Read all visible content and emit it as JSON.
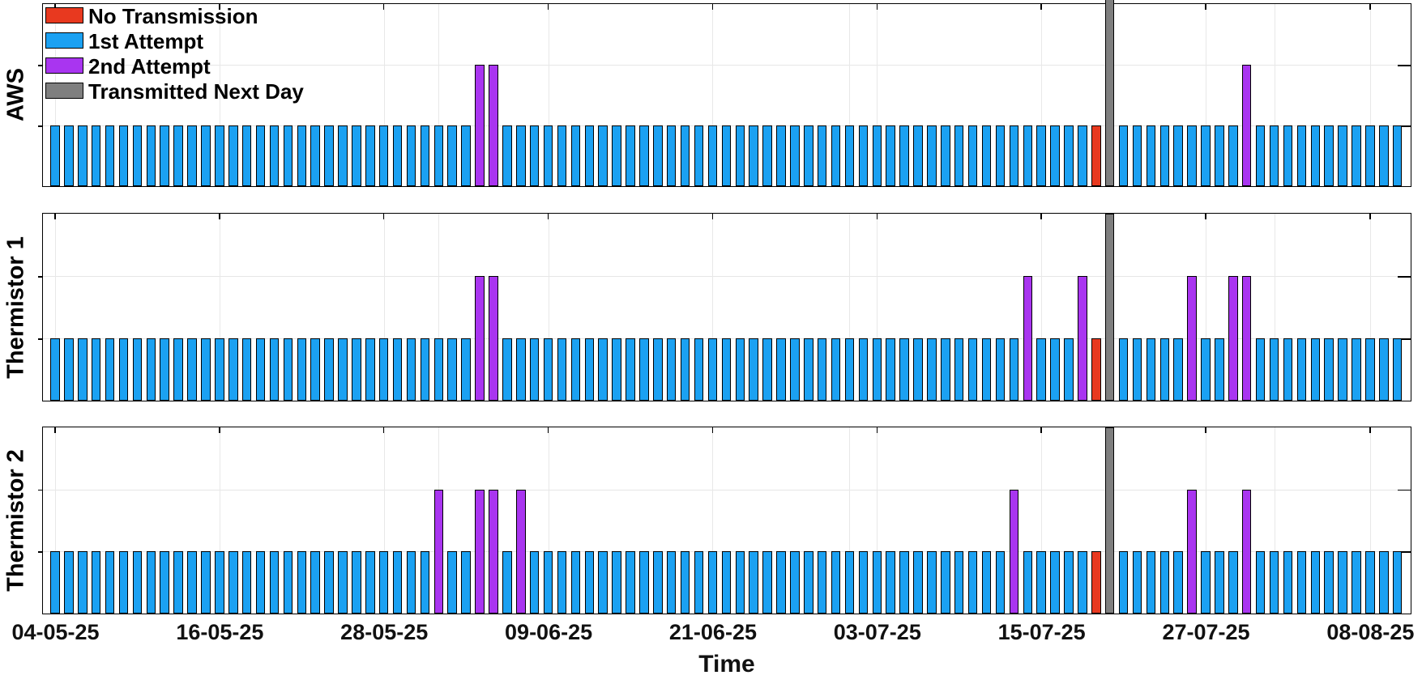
{
  "figure": {
    "background": "#ffffff"
  },
  "legend": {
    "items": [
      {
        "label": "No Transmission",
        "color": "#e8391f"
      },
      {
        "label": "1st Attempt",
        "color": "#1ba1f2"
      },
      {
        "label": "2nd Attempt",
        "color": "#a935f0"
      },
      {
        "label": "Transmitted Next Day",
        "color": "#7f7f7f"
      }
    ]
  },
  "chart_data": {
    "type": "bar",
    "title": "",
    "xlabel": "Time",
    "x_tick_labels": [
      "04-05-25",
      "16-05-25",
      "28-05-25",
      "09-06-25",
      "21-06-25",
      "03-07-25",
      "15-07-25",
      "27-07-25",
      "08-08-25"
    ],
    "x_tick_days": [
      0,
      12,
      24,
      36,
      48,
      60,
      72,
      84,
      96
    ],
    "month_gridline_days": [
      28,
      58,
      89
    ],
    "start_date": "04-05-25",
    "end_date": "10-08-25",
    "n_days": 99,
    "ylim": [
      0,
      3
    ],
    "grid": true,
    "legend_position": "top-left-inside",
    "status_values": {
      "1st Attempt": 1,
      "No Transmission": 1,
      "2nd Attempt": 2,
      "Transmitted Next Day": 3
    },
    "panels": [
      {
        "name": "AWS",
        "default_status": "1st Attempt",
        "second_attempt_days": [
          31,
          32,
          87
        ],
        "second_attempt_dates": [
          "04-06-25",
          "05-06-25",
          "30-07-25"
        ],
        "no_transmission_days": [
          76
        ],
        "no_transmission_dates": [
          "19-07-25"
        ],
        "transmitted_next_day_days": [
          77
        ],
        "transmitted_next_day_dates": [
          "20-07-25"
        ]
      },
      {
        "name": "Thermistor 1",
        "default_status": "1st Attempt",
        "second_attempt_days": [
          31,
          32,
          71,
          75,
          83,
          86,
          87
        ],
        "second_attempt_dates": [
          "04-06-25",
          "05-06-25",
          "14-07-25",
          "18-07-25",
          "26-07-25",
          "29-07-25",
          "30-07-25"
        ],
        "no_transmission_days": [
          76
        ],
        "no_transmission_dates": [
          "19-07-25"
        ],
        "transmitted_next_day_days": [
          77
        ],
        "transmitted_next_day_dates": [
          "20-07-25"
        ]
      },
      {
        "name": "Thermistor 2",
        "default_status": "1st Attempt",
        "second_attempt_days": [
          28,
          31,
          32,
          34,
          70,
          83,
          87
        ],
        "second_attempt_dates": [
          "01-06-25",
          "04-06-25",
          "05-06-25",
          "07-06-25",
          "13-07-25",
          "26-07-25",
          "30-07-25"
        ],
        "no_transmission_days": [
          76
        ],
        "no_transmission_dates": [
          "19-07-25"
        ],
        "transmitted_next_day_days": [
          77
        ],
        "transmitted_next_day_dates": [
          "20-07-25"
        ]
      }
    ]
  }
}
